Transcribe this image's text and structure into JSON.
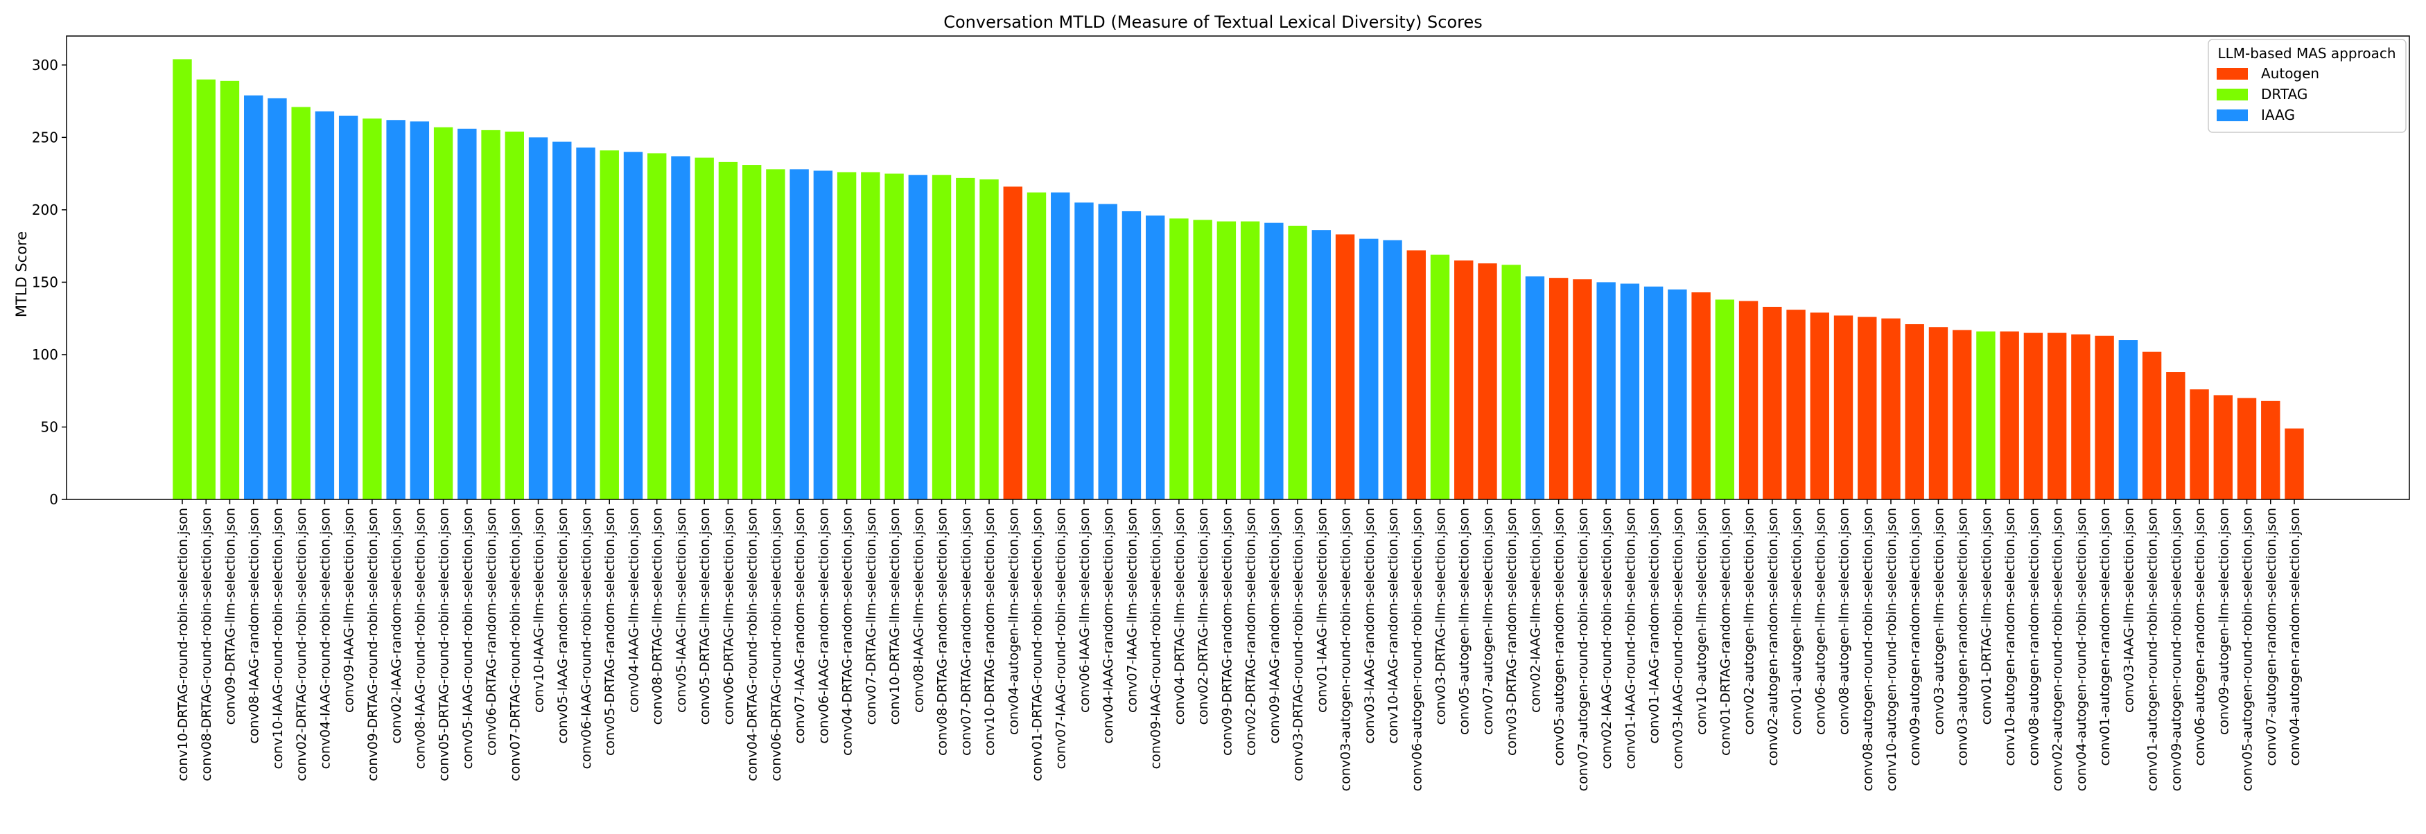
{
  "chart_data": {
    "type": "bar",
    "title": "Conversation MTLD (Measure of Textual Lexical Diversity) Scores",
    "xlabel": "",
    "ylabel": "MTLD Score",
    "ylim": [
      0,
      320
    ],
    "yticks": [
      0,
      50,
      100,
      150,
      200,
      250,
      300
    ],
    "grid": false,
    "legend": {
      "title": "LLM-based MAS approach",
      "placement": "top-right",
      "entries": [
        {
          "label": "Autogen",
          "color": "#ff4500"
        },
        {
          "label": "DRTAG",
          "color": "#7cfc00"
        },
        {
          "label": "IAAG",
          "color": "#1e90ff"
        }
      ]
    },
    "bars": [
      {
        "label": "conv10-DRTAG-round-robin-selection.json",
        "group": "DRTAG",
        "value": 304
      },
      {
        "label": "conv08-DRTAG-round-robin-selection.json",
        "group": "DRTAG",
        "value": 290
      },
      {
        "label": "conv09-DRTAG-llm-selection.json",
        "group": "DRTAG",
        "value": 289
      },
      {
        "label": "conv08-IAAG-random-selection.json",
        "group": "IAAG",
        "value": 279
      },
      {
        "label": "conv10-IAAG-round-robin-selection.json",
        "group": "IAAG",
        "value": 277
      },
      {
        "label": "conv02-DRTAG-round-robin-selection.json",
        "group": "DRTAG",
        "value": 271
      },
      {
        "label": "conv04-IAAG-round-robin-selection.json",
        "group": "IAAG",
        "value": 268
      },
      {
        "label": "conv09-IAAG-llm-selection.json",
        "group": "IAAG",
        "value": 265
      },
      {
        "label": "conv09-DRTAG-round-robin-selection.json",
        "group": "DRTAG",
        "value": 263
      },
      {
        "label": "conv02-IAAG-random-selection.json",
        "group": "IAAG",
        "value": 262
      },
      {
        "label": "conv08-IAAG-round-robin-selection.json",
        "group": "IAAG",
        "value": 261
      },
      {
        "label": "conv05-DRTAG-round-robin-selection.json",
        "group": "DRTAG",
        "value": 257
      },
      {
        "label": "conv05-IAAG-round-robin-selection.json",
        "group": "IAAG",
        "value": 256
      },
      {
        "label": "conv06-DRTAG-random-selection.json",
        "group": "DRTAG",
        "value": 255
      },
      {
        "label": "conv07-DRTAG-round-robin-selection.json",
        "group": "DRTAG",
        "value": 254
      },
      {
        "label": "conv10-IAAG-llm-selection.json",
        "group": "IAAG",
        "value": 250
      },
      {
        "label": "conv05-IAAG-random-selection.json",
        "group": "IAAG",
        "value": 247
      },
      {
        "label": "conv06-IAAG-round-robin-selection.json",
        "group": "IAAG",
        "value": 243
      },
      {
        "label": "conv05-DRTAG-random-selection.json",
        "group": "DRTAG",
        "value": 241
      },
      {
        "label": "conv04-IAAG-llm-selection.json",
        "group": "IAAG",
        "value": 240
      },
      {
        "label": "conv08-DRTAG-llm-selection.json",
        "group": "DRTAG",
        "value": 239
      },
      {
        "label": "conv05-IAAG-llm-selection.json",
        "group": "IAAG",
        "value": 237
      },
      {
        "label": "conv05-DRTAG-llm-selection.json",
        "group": "DRTAG",
        "value": 236
      },
      {
        "label": "conv06-DRTAG-llm-selection.json",
        "group": "DRTAG",
        "value": 233
      },
      {
        "label": "conv04-DRTAG-round-robin-selection.json",
        "group": "DRTAG",
        "value": 231
      },
      {
        "label": "conv06-DRTAG-round-robin-selection.json",
        "group": "DRTAG",
        "value": 228
      },
      {
        "label": "conv07-IAAG-random-selection.json",
        "group": "IAAG",
        "value": 228
      },
      {
        "label": "conv06-IAAG-random-selection.json",
        "group": "IAAG",
        "value": 227
      },
      {
        "label": "conv04-DRTAG-random-selection.json",
        "group": "DRTAG",
        "value": 226
      },
      {
        "label": "conv07-DRTAG-llm-selection.json",
        "group": "DRTAG",
        "value": 226
      },
      {
        "label": "conv10-DRTAG-llm-selection.json",
        "group": "DRTAG",
        "value": 225
      },
      {
        "label": "conv08-IAAG-llm-selection.json",
        "group": "IAAG",
        "value": 224
      },
      {
        "label": "conv08-DRTAG-random-selection.json",
        "group": "DRTAG",
        "value": 224
      },
      {
        "label": "conv07-DRTAG-random-selection.json",
        "group": "DRTAG",
        "value": 222
      },
      {
        "label": "conv10-DRTAG-random-selection.json",
        "group": "DRTAG",
        "value": 221
      },
      {
        "label": "conv04-autogen-llm-selection.json",
        "group": "Autogen",
        "value": 216
      },
      {
        "label": "conv01-DRTAG-round-robin-selection.json",
        "group": "DRTAG",
        "value": 212
      },
      {
        "label": "conv07-IAAG-round-robin-selection.json",
        "group": "IAAG",
        "value": 212
      },
      {
        "label": "conv06-IAAG-llm-selection.json",
        "group": "IAAG",
        "value": 205
      },
      {
        "label": "conv04-IAAG-random-selection.json",
        "group": "IAAG",
        "value": 204
      },
      {
        "label": "conv07-IAAG-llm-selection.json",
        "group": "IAAG",
        "value": 199
      },
      {
        "label": "conv09-IAAG-round-robin-selection.json",
        "group": "IAAG",
        "value": 196
      },
      {
        "label": "conv04-DRTAG-llm-selection.json",
        "group": "DRTAG",
        "value": 194
      },
      {
        "label": "conv02-DRTAG-llm-selection.json",
        "group": "DRTAG",
        "value": 193
      },
      {
        "label": "conv09-DRTAG-random-selection.json",
        "group": "DRTAG",
        "value": 192
      },
      {
        "label": "conv02-DRTAG-random-selection.json",
        "group": "DRTAG",
        "value": 192
      },
      {
        "label": "conv09-IAAG-random-selection.json",
        "group": "IAAG",
        "value": 191
      },
      {
        "label": "conv03-DRTAG-round-robin-selection.json",
        "group": "DRTAG",
        "value": 189
      },
      {
        "label": "conv01-IAAG-llm-selection.json",
        "group": "IAAG",
        "value": 186
      },
      {
        "label": "conv03-autogen-round-robin-selection.json",
        "group": "Autogen",
        "value": 183
      },
      {
        "label": "conv03-IAAG-random-selection.json",
        "group": "IAAG",
        "value": 180
      },
      {
        "label": "conv10-IAAG-random-selection.json",
        "group": "IAAG",
        "value": 179
      },
      {
        "label": "conv06-autogen-round-robin-selection.json",
        "group": "Autogen",
        "value": 172
      },
      {
        "label": "conv03-DRTAG-llm-selection.json",
        "group": "DRTAG",
        "value": 169
      },
      {
        "label": "conv05-autogen-llm-selection.json",
        "group": "Autogen",
        "value": 165
      },
      {
        "label": "conv07-autogen-llm-selection.json",
        "group": "Autogen",
        "value": 163
      },
      {
        "label": "conv03-DRTAG-random-selection.json",
        "group": "DRTAG",
        "value": 162
      },
      {
        "label": "conv02-IAAG-llm-selection.json",
        "group": "IAAG",
        "value": 154
      },
      {
        "label": "conv05-autogen-random-selection.json",
        "group": "Autogen",
        "value": 153
      },
      {
        "label": "conv07-autogen-round-robin-selection.json",
        "group": "Autogen",
        "value": 152
      },
      {
        "label": "conv02-IAAG-round-robin-selection.json",
        "group": "IAAG",
        "value": 150
      },
      {
        "label": "conv01-IAAG-round-robin-selection.json",
        "group": "IAAG",
        "value": 149
      },
      {
        "label": "conv01-IAAG-random-selection.json",
        "group": "IAAG",
        "value": 147
      },
      {
        "label": "conv03-IAAG-round-robin-selection.json",
        "group": "IAAG",
        "value": 145
      },
      {
        "label": "conv10-autogen-llm-selection.json",
        "group": "Autogen",
        "value": 143
      },
      {
        "label": "conv01-DRTAG-random-selection.json",
        "group": "DRTAG",
        "value": 138
      },
      {
        "label": "conv02-autogen-llm-selection.json",
        "group": "Autogen",
        "value": 137
      },
      {
        "label": "conv02-autogen-random-selection.json",
        "group": "Autogen",
        "value": 133
      },
      {
        "label": "conv01-autogen-llm-selection.json",
        "group": "Autogen",
        "value": 131
      },
      {
        "label": "conv06-autogen-llm-selection.json",
        "group": "Autogen",
        "value": 129
      },
      {
        "label": "conv08-autogen-llm-selection.json",
        "group": "Autogen",
        "value": 127
      },
      {
        "label": "conv08-autogen-round-robin-selection.json",
        "group": "Autogen",
        "value": 126
      },
      {
        "label": "conv10-autogen-round-robin-selection.json",
        "group": "Autogen",
        "value": 125
      },
      {
        "label": "conv09-autogen-random-selection.json",
        "group": "Autogen",
        "value": 121
      },
      {
        "label": "conv03-autogen-llm-selection.json",
        "group": "Autogen",
        "value": 119
      },
      {
        "label": "conv03-autogen-random-selection.json",
        "group": "Autogen",
        "value": 117
      },
      {
        "label": "conv01-DRTAG-llm-selection.json",
        "group": "DRTAG",
        "value": 116
      },
      {
        "label": "conv10-autogen-random-selection.json",
        "group": "Autogen",
        "value": 116
      },
      {
        "label": "conv08-autogen-random-selection.json",
        "group": "Autogen",
        "value": 115
      },
      {
        "label": "conv02-autogen-round-robin-selection.json",
        "group": "Autogen",
        "value": 115
      },
      {
        "label": "conv04-autogen-round-robin-selection.json",
        "group": "Autogen",
        "value": 114
      },
      {
        "label": "conv01-autogen-random-selection.json",
        "group": "Autogen",
        "value": 113
      },
      {
        "label": "conv03-IAAG-llm-selection.json",
        "group": "IAAG",
        "value": 110
      },
      {
        "label": "conv01-autogen-round-robin-selection.json",
        "group": "Autogen",
        "value": 102
      },
      {
        "label": "conv09-autogen-round-robin-selection.json",
        "group": "Autogen",
        "value": 88
      },
      {
        "label": "conv06-autogen-random-selection.json",
        "group": "Autogen",
        "value": 76
      },
      {
        "label": "conv09-autogen-llm-selection.json",
        "group": "Autogen",
        "value": 72
      },
      {
        "label": "conv05-autogen-round-robin-selection.json",
        "group": "Autogen",
        "value": 70
      },
      {
        "label": "conv07-autogen-random-selection.json",
        "group": "Autogen",
        "value": 68
      },
      {
        "label": "conv04-autogen-random-selection.json",
        "group": "Autogen",
        "value": 49
      }
    ]
  }
}
